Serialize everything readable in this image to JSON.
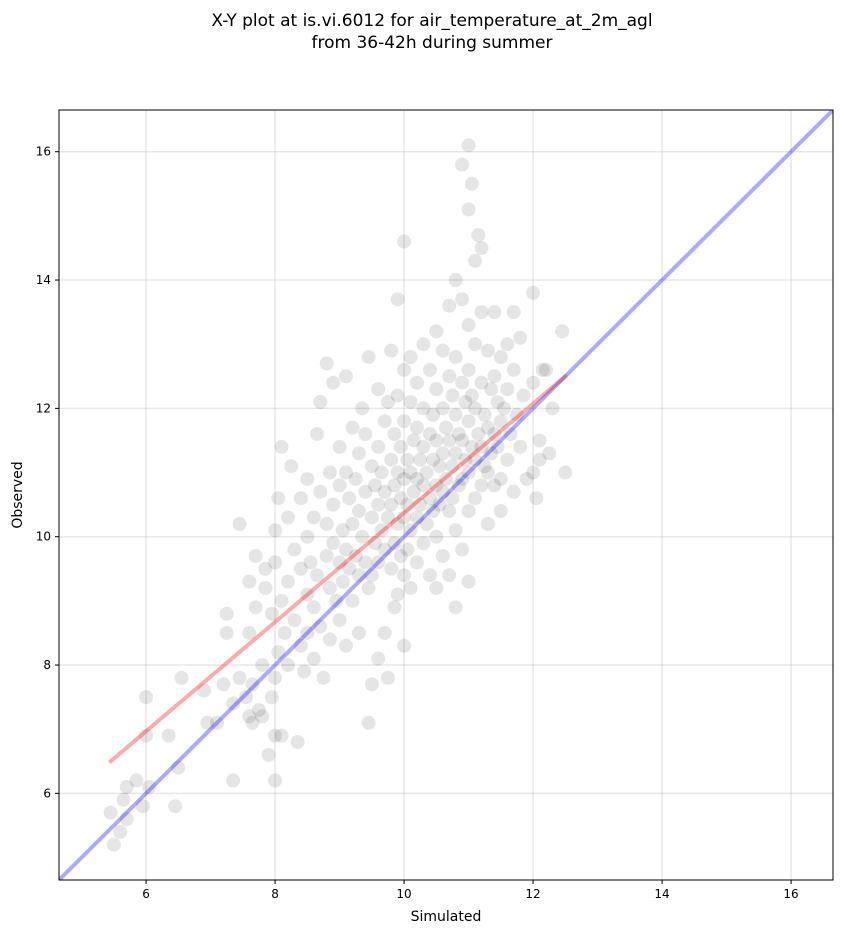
{
  "chart_data": {
    "type": "scatter",
    "title": [
      "X-Y plot at is.vi.6012 for air_temperature_at_2m_agl",
      "from 36-42h during summer"
    ],
    "xlabel": "Simulated",
    "ylabel": "Observed",
    "xlim": [
      4.65,
      16.65
    ],
    "ylim": [
      4.65,
      16.65
    ],
    "xticks": [
      6,
      8,
      10,
      12,
      14,
      16
    ],
    "yticks": [
      6,
      8,
      10,
      12,
      14,
      16
    ],
    "grid": true,
    "point_color": "#000000",
    "point_opacity": 0.1,
    "reference_line": {
      "label": "1:1",
      "color": "#0000ff",
      "opacity": 0.33,
      "x": [
        4.65,
        16.65
      ],
      "y": [
        4.65,
        16.65
      ]
    },
    "fit_line": {
      "color": "#ff0000",
      "opacity": 0.33,
      "x": [
        5.45,
        12.5
      ],
      "y": [
        6.5,
        12.5
      ]
    },
    "points": [
      [
        5.45,
        5.7
      ],
      [
        5.5,
        5.2
      ],
      [
        5.6,
        5.4
      ],
      [
        5.65,
        5.9
      ],
      [
        5.7,
        6.1
      ],
      [
        5.7,
        5.6
      ],
      [
        5.85,
        6.2
      ],
      [
        5.95,
        5.8
      ],
      [
        6.0,
        7.5
      ],
      [
        6.0,
        6.9
      ],
      [
        6.05,
        6.1
      ],
      [
        6.35,
        6.9
      ],
      [
        6.45,
        5.8
      ],
      [
        6.5,
        6.4
      ],
      [
        6.55,
        7.8
      ],
      [
        6.9,
        7.6
      ],
      [
        6.95,
        7.1
      ],
      [
        7.1,
        7.1
      ],
      [
        7.2,
        7.7
      ],
      [
        7.25,
        8.5
      ],
      [
        7.25,
        8.8
      ],
      [
        7.35,
        7.4
      ],
      [
        7.35,
        6.2
      ],
      [
        7.45,
        7.8
      ],
      [
        7.45,
        10.2
      ],
      [
        7.55,
        7.5
      ],
      [
        7.6,
        9.3
      ],
      [
        7.6,
        8.5
      ],
      [
        7.6,
        7.2
      ],
      [
        7.65,
        7.7
      ],
      [
        7.65,
        7.1
      ],
      [
        7.7,
        9.7
      ],
      [
        7.7,
        8.9
      ],
      [
        7.75,
        7.3
      ],
      [
        7.8,
        8.0
      ],
      [
        7.8,
        7.2
      ],
      [
        7.85,
        9.5
      ],
      [
        7.85,
        9.2
      ],
      [
        7.9,
        6.6
      ],
      [
        7.95,
        8.8
      ],
      [
        7.95,
        7.5
      ],
      [
        8.0,
        10.1
      ],
      [
        8.0,
        9.6
      ],
      [
        8.0,
        7.8
      ],
      [
        8.0,
        6.9
      ],
      [
        8.0,
        6.2
      ],
      [
        8.05,
        10.6
      ],
      [
        8.05,
        8.2
      ],
      [
        8.1,
        11.4
      ],
      [
        8.1,
        9.0
      ],
      [
        8.1,
        6.9
      ],
      [
        8.15,
        8.5
      ],
      [
        8.2,
        10.3
      ],
      [
        8.2,
        9.3
      ],
      [
        8.2,
        8.0
      ],
      [
        8.25,
        11.1
      ],
      [
        8.3,
        9.8
      ],
      [
        8.3,
        8.7
      ],
      [
        8.35,
        6.8
      ],
      [
        8.4,
        10.6
      ],
      [
        8.4,
        9.5
      ],
      [
        8.4,
        8.3
      ],
      [
        8.45,
        7.9
      ],
      [
        8.5,
        10.9
      ],
      [
        8.5,
        10.0
      ],
      [
        8.5,
        9.1
      ],
      [
        8.5,
        8.5
      ],
      [
        8.55,
        9.6
      ],
      [
        8.6,
        10.3
      ],
      [
        8.6,
        8.9
      ],
      [
        8.6,
        8.1
      ],
      [
        8.65,
        11.6
      ],
      [
        8.65,
        9.4
      ],
      [
        8.7,
        12.1
      ],
      [
        8.7,
        10.7
      ],
      [
        8.7,
        8.6
      ],
      [
        8.75,
        7.8
      ],
      [
        8.8,
        12.7
      ],
      [
        8.8,
        10.2
      ],
      [
        8.8,
        9.7
      ],
      [
        8.85,
        11.0
      ],
      [
        8.85,
        9.2
      ],
      [
        8.85,
        8.4
      ],
      [
        8.9,
        12.4
      ],
      [
        8.9,
        10.5
      ],
      [
        8.9,
        9.9
      ],
      [
        8.95,
        9.0
      ],
      [
        9.0,
        11.4
      ],
      [
        9.0,
        10.8
      ],
      [
        9.0,
        9.6
      ],
      [
        9.0,
        8.7
      ],
      [
        9.05,
        10.1
      ],
      [
        9.05,
        9.3
      ],
      [
        9.1,
        12.5
      ],
      [
        9.1,
        11.0
      ],
      [
        9.1,
        9.8
      ],
      [
        9.1,
        8.3
      ],
      [
        9.15,
        10.6
      ],
      [
        9.15,
        9.5
      ],
      [
        9.2,
        11.7
      ],
      [
        9.2,
        10.2
      ],
      [
        9.2,
        9.0
      ],
      [
        9.25,
        10.9
      ],
      [
        9.25,
        9.7
      ],
      [
        9.3,
        11.3
      ],
      [
        9.3,
        10.4
      ],
      [
        9.3,
        9.4
      ],
      [
        9.3,
        8.5
      ],
      [
        9.35,
        12.0
      ],
      [
        9.35,
        10.0
      ],
      [
        9.4,
        11.6
      ],
      [
        9.4,
        10.7
      ],
      [
        9.4,
        9.6
      ],
      [
        9.45,
        12.8
      ],
      [
        9.45,
        9.2
      ],
      [
        9.45,
        7.1
      ],
      [
        9.5,
        11.1
      ],
      [
        9.5,
        10.3
      ],
      [
        9.5,
        9.4
      ],
      [
        9.5,
        7.7
      ],
      [
        9.55,
        10.8
      ],
      [
        9.55,
        9.9
      ],
      [
        9.6,
        12.3
      ],
      [
        9.6,
        11.4
      ],
      [
        9.6,
        10.5
      ],
      [
        9.6,
        9.6
      ],
      [
        9.6,
        8.1
      ],
      [
        9.65,
        11.0
      ],
      [
        9.65,
        10.1
      ],
      [
        9.7,
        11.8
      ],
      [
        9.7,
        10.7
      ],
      [
        9.7,
        9.8
      ],
      [
        9.7,
        8.5
      ],
      [
        9.75,
        12.1
      ],
      [
        9.75,
        10.3
      ],
      [
        9.75,
        7.8
      ],
      [
        9.8,
        12.9
      ],
      [
        9.8,
        11.2
      ],
      [
        9.8,
        10.5
      ],
      [
        9.8,
        9.5
      ],
      [
        9.85,
        11.6
      ],
      [
        9.85,
        10.8
      ],
      [
        9.85,
        9.9
      ],
      [
        9.85,
        8.9
      ],
      [
        9.9,
        13.7
      ],
      [
        9.9,
        12.2
      ],
      [
        9.9,
        11.0
      ],
      [
        9.9,
        10.2
      ],
      [
        9.9,
        9.1
      ],
      [
        9.95,
        11.4
      ],
      [
        9.95,
        10.6
      ],
      [
        9.95,
        9.7
      ],
      [
        10.0,
        14.6
      ],
      [
        10.0,
        12.6
      ],
      [
        10.0,
        11.8
      ],
      [
        10.0,
        10.9
      ],
      [
        10.0,
        10.3
      ],
      [
        10.0,
        9.4
      ],
      [
        10.0,
        8.3
      ],
      [
        10.05,
        11.2
      ],
      [
        10.05,
        10.5
      ],
      [
        10.05,
        9.8
      ],
      [
        10.1,
        12.8
      ],
      [
        10.1,
        12.1
      ],
      [
        10.1,
        11.0
      ],
      [
        10.1,
        10.1
      ],
      [
        10.1,
        9.2
      ],
      [
        10.15,
        11.5
      ],
      [
        10.15,
        10.7
      ],
      [
        10.2,
        12.4
      ],
      [
        10.2,
        11.7
      ],
      [
        10.2,
        10.9
      ],
      [
        10.2,
        10.3
      ],
      [
        10.2,
        9.6
      ],
      [
        10.25,
        11.2
      ],
      [
        10.25,
        10.5
      ],
      [
        10.3,
        13.0
      ],
      [
        10.3,
        12.0
      ],
      [
        10.3,
        11.4
      ],
      [
        10.3,
        10.8
      ],
      [
        10.3,
        9.9
      ],
      [
        10.35,
        11.0
      ],
      [
        10.35,
        10.2
      ],
      [
        10.4,
        12.6
      ],
      [
        10.4,
        11.6
      ],
      [
        10.4,
        10.6
      ],
      [
        10.4,
        9.4
      ],
      [
        10.45,
        11.9
      ],
      [
        10.45,
        11.2
      ],
      [
        10.45,
        10.4
      ],
      [
        10.5,
        13.2
      ],
      [
        10.5,
        12.3
      ],
      [
        10.5,
        11.5
      ],
      [
        10.5,
        10.8
      ],
      [
        10.5,
        10.0
      ],
      [
        10.5,
        9.2
      ],
      [
        10.55,
        11.1
      ],
      [
        10.55,
        10.5
      ],
      [
        10.6,
        12.9
      ],
      [
        10.6,
        12.0
      ],
      [
        10.6,
        11.3
      ],
      [
        10.6,
        10.7
      ],
      [
        10.6,
        9.7
      ],
      [
        10.65,
        11.7
      ],
      [
        10.65,
        10.9
      ],
      [
        10.7,
        13.6
      ],
      [
        10.7,
        12.5
      ],
      [
        10.7,
        11.5
      ],
      [
        10.7,
        10.4
      ],
      [
        10.7,
        9.4
      ],
      [
        10.75,
        12.2
      ],
      [
        10.75,
        11.1
      ],
      [
        10.75,
        10.6
      ],
      [
        10.8,
        14.0
      ],
      [
        10.8,
        12.8
      ],
      [
        10.8,
        11.9
      ],
      [
        10.8,
        11.3
      ],
      [
        10.8,
        10.1
      ],
      [
        10.8,
        8.9
      ],
      [
        10.85,
        11.6
      ],
      [
        10.85,
        10.8
      ],
      [
        10.9,
        15.8
      ],
      [
        10.9,
        13.7
      ],
      [
        10.9,
        12.4
      ],
      [
        10.9,
        11.5
      ],
      [
        10.9,
        10.9
      ],
      [
        10.9,
        9.8
      ],
      [
        10.95,
        12.1
      ],
      [
        10.95,
        11.2
      ],
      [
        11.0,
        16.1
      ],
      [
        11.0,
        15.1
      ],
      [
        11.0,
        13.3
      ],
      [
        11.0,
        12.6
      ],
      [
        11.0,
        11.8
      ],
      [
        11.0,
        11.0
      ],
      [
        11.0,
        10.4
      ],
      [
        11.0,
        9.3
      ],
      [
        11.05,
        15.5
      ],
      [
        11.05,
        12.2
      ],
      [
        11.05,
        11.4
      ],
      [
        11.1,
        14.3
      ],
      [
        11.1,
        13.0
      ],
      [
        11.1,
        12.0
      ],
      [
        11.1,
        11.2
      ],
      [
        11.1,
        10.6
      ],
      [
        11.15,
        14.7
      ],
      [
        11.15,
        11.6
      ],
      [
        11.2,
        14.5
      ],
      [
        11.2,
        13.5
      ],
      [
        11.2,
        12.4
      ],
      [
        11.2,
        11.4
      ],
      [
        11.2,
        10.8
      ],
      [
        11.25,
        11.9
      ],
      [
        11.25,
        11.1
      ],
      [
        11.3,
        12.9
      ],
      [
        11.3,
        11.7
      ],
      [
        11.3,
        11.0
      ],
      [
        11.3,
        10.2
      ],
      [
        11.35,
        12.3
      ],
      [
        11.35,
        11.3
      ],
      [
        11.4,
        13.5
      ],
      [
        11.4,
        12.5
      ],
      [
        11.4,
        11.6
      ],
      [
        11.4,
        10.8
      ],
      [
        11.45,
        12.1
      ],
      [
        11.45,
        11.4
      ],
      [
        11.5,
        12.8
      ],
      [
        11.5,
        11.8
      ],
      [
        11.5,
        10.9
      ],
      [
        11.5,
        10.4
      ],
      [
        11.55,
        12.0
      ],
      [
        11.6,
        13.0
      ],
      [
        11.6,
        12.3
      ],
      [
        11.6,
        11.2
      ],
      [
        11.65,
        11.6
      ],
      [
        11.7,
        13.5
      ],
      [
        11.7,
        12.6
      ],
      [
        11.7,
        10.7
      ],
      [
        11.75,
        11.9
      ],
      [
        11.8,
        13.1
      ],
      [
        11.8,
        11.4
      ],
      [
        11.85,
        12.2
      ],
      [
        11.9,
        10.9
      ],
      [
        12.0,
        13.8
      ],
      [
        12.0,
        12.4
      ],
      [
        12.0,
        11.0
      ],
      [
        12.05,
        10.6
      ],
      [
        12.1,
        11.5
      ],
      [
        12.1,
        11.2
      ],
      [
        12.15,
        12.6
      ],
      [
        12.2,
        12.6
      ],
      [
        12.25,
        11.3
      ],
      [
        12.3,
        12.0
      ],
      [
        12.45,
        13.2
      ],
      [
        12.5,
        11.0
      ]
    ]
  }
}
